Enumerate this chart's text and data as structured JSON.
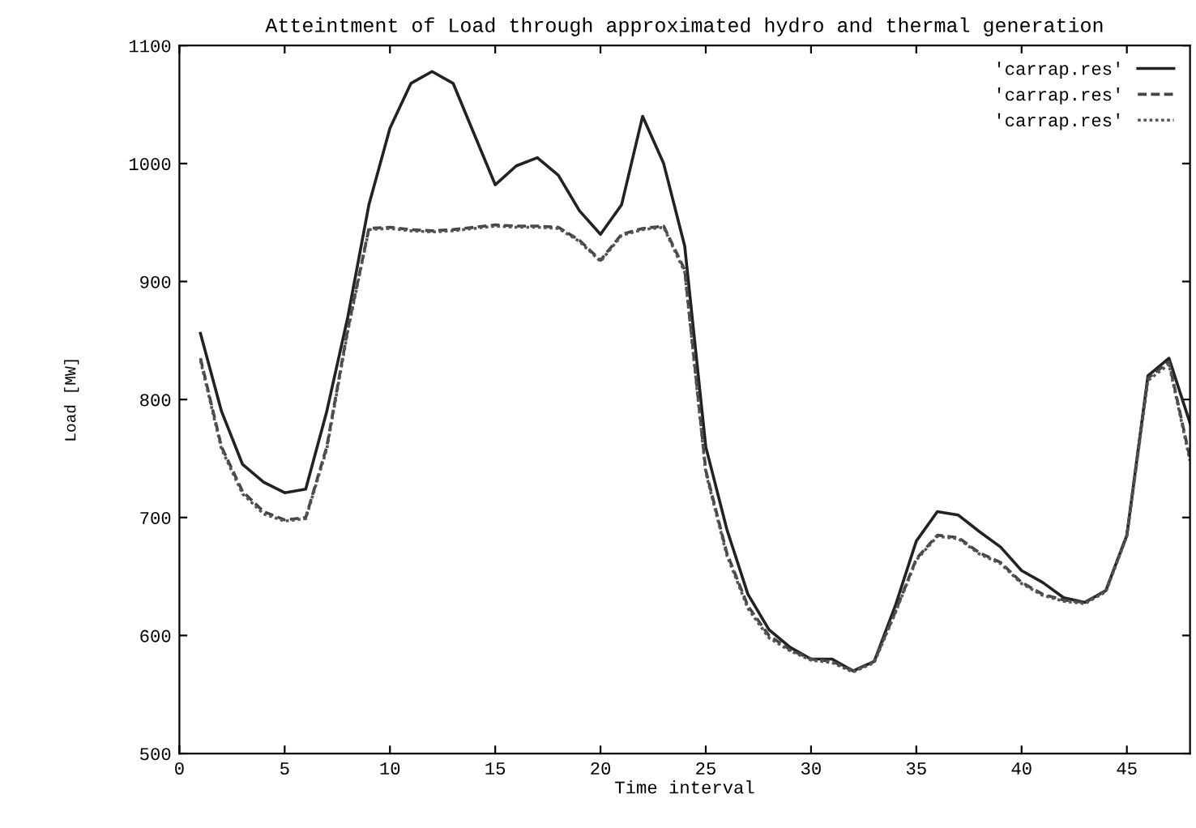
{
  "chart_data": {
    "type": "line",
    "title": "Atteintment of Load through approximated hydro and thermal generation",
    "xlabel": "Time interval",
    "ylabel": "Load [MW]",
    "x": [
      1,
      2,
      3,
      4,
      5,
      6,
      7,
      8,
      9,
      10,
      11,
      12,
      13,
      14,
      15,
      16,
      17,
      18,
      19,
      20,
      21,
      22,
      23,
      24,
      25,
      26,
      27,
      28,
      29,
      30,
      31,
      32,
      33,
      34,
      35,
      36,
      37,
      38,
      39,
      40,
      41,
      42,
      43,
      44,
      45,
      46,
      47,
      48
    ],
    "series": [
      {
        "name": "'carrap.res'",
        "color": "#222222",
        "line_style": "solid",
        "values": [
          856,
          790,
          745,
          730,
          721,
          724,
          790,
          870,
          965,
          1030,
          1068,
          1078,
          1068,
          1025,
          982,
          998,
          1005,
          990,
          960,
          940,
          965,
          1040,
          1000,
          930,
          760,
          690,
          635,
          605,
          590,
          580,
          580,
          570,
          578,
          625,
          680,
          705,
          702,
          688,
          675,
          655,
          645,
          632,
          628,
          638,
          685,
          820,
          835,
          780
        ]
      },
      {
        "name": "'carrap.res'",
        "color": "#444444",
        "line_style": "dashed",
        "values": [
          835,
          760,
          722,
          705,
          698,
          700,
          760,
          860,
          945,
          946,
          944,
          943,
          944,
          946,
          948,
          947,
          947,
          946,
          935,
          918,
          940,
          945,
          947,
          910,
          740,
          670,
          625,
          600,
          588,
          580,
          578,
          570,
          578,
          620,
          665,
          685,
          683,
          670,
          662,
          645,
          635,
          630,
          628,
          638,
          685,
          818,
          832,
          750
        ]
      },
      {
        "name": "'carrap.res'",
        "color": "#555555",
        "line_style": "dotted",
        "values": [
          833,
          758,
          720,
          703,
          697,
          699,
          758,
          858,
          944,
          945,
          943,
          942,
          943,
          945,
          947,
          946,
          946,
          945,
          934,
          917,
          939,
          944,
          946,
          908,
          738,
          668,
          623,
          598,
          587,
          579,
          577,
          569,
          577,
          619,
          664,
          684,
          682,
          669,
          661,
          644,
          634,
          629,
          627,
          637,
          684,
          816,
          830,
          748
        ]
      }
    ],
    "xlim": [
      0,
      48
    ],
    "xticks": [
      0,
      5,
      10,
      15,
      20,
      25,
      30,
      35,
      40,
      45
    ],
    "ylim": [
      500,
      1100
    ],
    "yticks": [
      500,
      600,
      700,
      800,
      900,
      1000,
      1100
    ],
    "legend": "top right",
    "grid": false
  }
}
